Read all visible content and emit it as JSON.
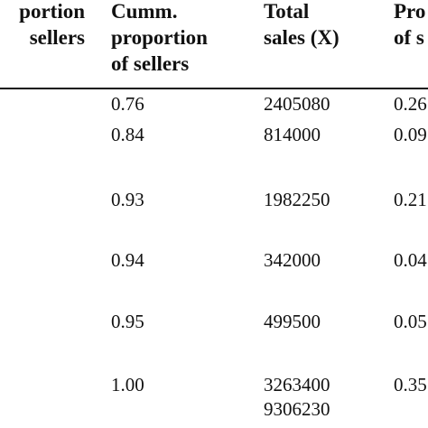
{
  "columns": [
    {
      "lines": [
        "portion",
        "sellers"
      ]
    },
    {
      "lines": [
        "Cumm.",
        "proportion",
        "of sellers"
      ]
    },
    {
      "lines": [
        "Total",
        "sales (X)"
      ]
    },
    {
      "lines": [
        "Pro",
        "of s"
      ]
    }
  ],
  "rows": [
    {
      "cumm": "0.76",
      "total": "2405080",
      "prop": "0.26"
    },
    {
      "cumm": "0.84",
      "total": "814000",
      "prop": "0.09"
    },
    {
      "cumm": "0.93",
      "total": "1982250",
      "prop": "0.21"
    },
    {
      "cumm": "0.94",
      "total": "342000",
      "prop": "0.04"
    },
    {
      "cumm": "0.95",
      "total": "499500",
      "prop": "0.05"
    },
    {
      "cumm": "1.00",
      "total": "3263400",
      "prop": "0.35"
    }
  ],
  "total_row": {
    "total": "9306230"
  }
}
